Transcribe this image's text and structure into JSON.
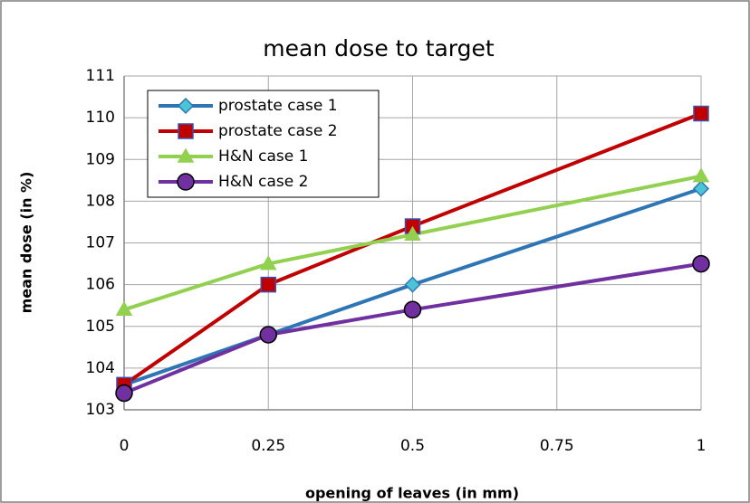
{
  "chart_data": {
    "type": "line",
    "title": "mean dose to target",
    "xlabel": "opening of leaves (in mm)",
    "ylabel": "mean dose (in %)",
    "x": [
      0,
      0.25,
      0.5,
      1
    ],
    "series": [
      {
        "name": "prostate case 1",
        "color": "#2e75b6",
        "marker": "diamond",
        "marker_color": "#4bc4d6",
        "values": [
          103.6,
          104.8,
          106.0,
          108.3
        ]
      },
      {
        "name": "prostate case 2",
        "color": "#c00000",
        "marker": "square",
        "marker_color": "#c00000",
        "values": [
          103.6,
          106.0,
          107.4,
          110.1
        ]
      },
      {
        "name": "H&N case 1",
        "color": "#92d050",
        "marker": "triangle",
        "marker_color": "#92d050",
        "values": [
          105.4,
          106.5,
          107.2,
          108.6
        ]
      },
      {
        "name": "H&N case 2",
        "color": "#7030a0",
        "marker": "circle",
        "marker_color": "#7030a0",
        "values": [
          103.4,
          104.8,
          105.4,
          106.5
        ]
      }
    ],
    "xlim": [
      0,
      1
    ],
    "xticks": [
      0,
      0.25,
      0.5,
      0.75,
      1
    ],
    "ylim": [
      103,
      111
    ],
    "yticks": [
      103,
      104,
      105,
      106,
      107,
      108,
      109,
      110,
      111
    ],
    "grid": true,
    "legend": "upper left"
  }
}
